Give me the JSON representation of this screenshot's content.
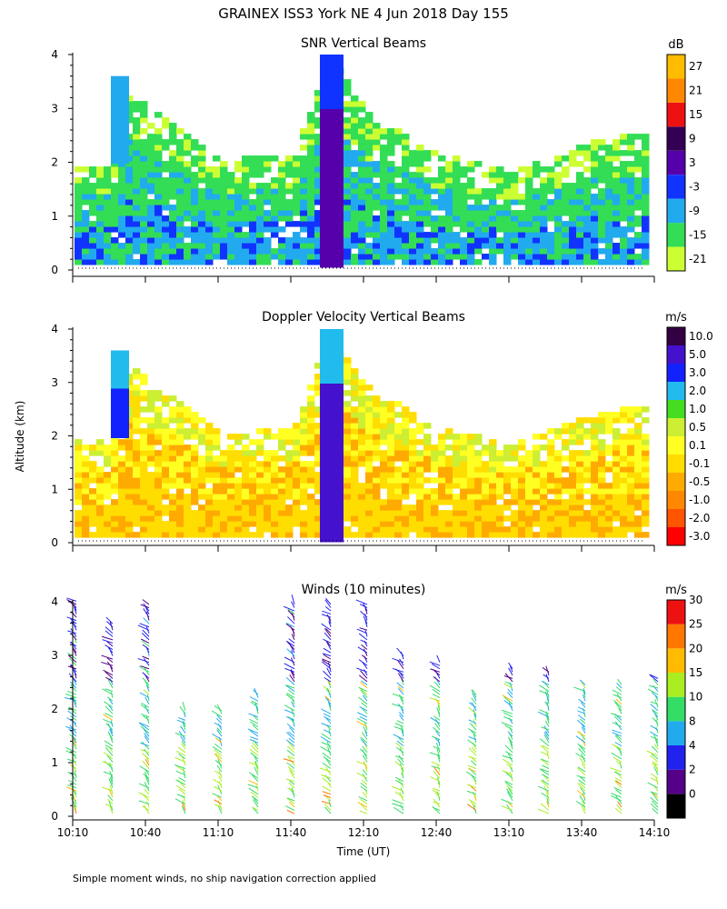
{
  "figure": {
    "title": "GRAINEX ISS3 York NE   4 Jun 2018 Day 155",
    "y_axis_label": "Altitude (km)",
    "x_axis_label": "Time (UT)",
    "footnote": "Simple moment winds, no ship navigation correction applied"
  },
  "time_ticks": [
    "10:10",
    "10:40",
    "11:10",
    "11:40",
    "12:10",
    "12:40",
    "13:10",
    "13:40",
    "14:10"
  ],
  "altitude_ticks": [
    "0",
    "1",
    "2",
    "3",
    "4"
  ],
  "panels": [
    {
      "key": "snr",
      "title": "SNR Vertical Beams",
      "unit": "dB",
      "colorbar": [
        {
          "label": "-21",
          "color": "#ccff33"
        },
        {
          "label": "-15",
          "color": "#33dd55"
        },
        {
          "label": "-9",
          "color": "#22aaee"
        },
        {
          "label": "-3",
          "color": "#1133ff"
        },
        {
          "label": "3",
          "color": "#5500aa"
        },
        {
          "label": "9",
          "color": "#330055"
        },
        {
          "label": "15",
          "color": "#ee1111"
        },
        {
          "label": "21",
          "color": "#ff8800"
        },
        {
          "label": "27",
          "color": "#ffbb00"
        }
      ]
    },
    {
      "key": "doppler",
      "title": "Doppler Velocity Vertical Beams",
      "unit": "m/s",
      "colorbar": [
        {
          "label": "-3.0",
          "color": "#ff0000"
        },
        {
          "label": "-2.0",
          "color": "#ff5500"
        },
        {
          "label": "-1.0",
          "color": "#ff8800"
        },
        {
          "label": "-0.5",
          "color": "#ffaa00"
        },
        {
          "label": "-0.1",
          "color": "#ffdd00"
        },
        {
          "label": "0.1",
          "color": "#ffff22"
        },
        {
          "label": "0.5",
          "color": "#ccee33"
        },
        {
          "label": "1.0",
          "color": "#44dd22"
        },
        {
          "label": "2.0",
          "color": "#22bbee"
        },
        {
          "label": "3.0",
          "color": "#1122ff"
        },
        {
          "label": "5.0",
          "color": "#4411cc"
        },
        {
          "label": "10.0",
          "color": "#330044"
        }
      ]
    },
    {
      "key": "winds",
      "title": "Winds (10 minutes)",
      "unit": "m/s",
      "colorbar": [
        {
          "label": "0",
          "color": "#000000"
        },
        {
          "label": "2",
          "color": "#550088"
        },
        {
          "label": "4",
          "color": "#2222ee"
        },
        {
          "label": "8",
          "color": "#22aaee"
        },
        {
          "label": "10",
          "color": "#33dd66"
        },
        {
          "label": "15",
          "color": "#aaee22"
        },
        {
          "label": "20",
          "color": "#ffbb00"
        },
        {
          "label": "25",
          "color": "#ff7700"
        },
        {
          "label": "30",
          "color": "#ee1111"
        }
      ]
    }
  ],
  "chart_data": [
    {
      "type": "heatmap",
      "title": "SNR Vertical Beams",
      "xlabel": "Time (UT)",
      "ylabel": "Altitude (km)",
      "xlim": [
        "10:10",
        "14:10"
      ],
      "ylim": [
        0,
        4
      ],
      "colorbar_unit": "dB",
      "notes_echo_top_km": [
        {
          "time": "10:10",
          "top_km": 2.0
        },
        {
          "time": "10:25",
          "top_km": 2.0
        },
        {
          "time": "10:30",
          "top_km": 3.5
        },
        {
          "time": "11:10",
          "top_km": 2.1
        },
        {
          "time": "11:40",
          "top_km": 2.2
        },
        {
          "time": "11:55",
          "top_km": 4.0
        },
        {
          "time": "12:10",
          "top_km": 3.0
        },
        {
          "time": "12:40",
          "top_km": 2.2
        },
        {
          "time": "13:10",
          "top_km": 1.9
        },
        {
          "time": "13:40",
          "top_km": 2.4
        },
        {
          "time": "14:00",
          "top_km": 2.6
        }
      ]
    },
    {
      "type": "heatmap",
      "title": "Doppler Velocity Vertical Beams",
      "xlabel": "Time (UT)",
      "ylabel": "Altitude (km)",
      "xlim": [
        "10:10",
        "14:10"
      ],
      "ylim": [
        0,
        4
      ],
      "colorbar_unit": "m/s"
    },
    {
      "type": "scatter",
      "title": "Winds (10 minutes)",
      "xlabel": "Time (UT)",
      "ylabel": "Altitude (km)",
      "xlim": [
        "10:10",
        "14:10"
      ],
      "ylim": [
        0,
        4
      ],
      "colorbar_unit": "m/s",
      "profiles": [
        {
          "time": "10:10",
          "top_km": 4.1
        },
        {
          "time": "10:25",
          "top_km": 3.6
        },
        {
          "time": "10:40",
          "top_km": 4.0
        },
        {
          "time": "10:55",
          "top_km": 2.0
        },
        {
          "time": "11:10",
          "top_km": 2.0
        },
        {
          "time": "11:25",
          "top_km": 2.3
        },
        {
          "time": "11:40",
          "top_km": 4.0
        },
        {
          "time": "11:55",
          "top_km": 4.0
        },
        {
          "time": "12:10",
          "top_km": 4.0
        },
        {
          "time": "12:25",
          "top_km": 3.0
        },
        {
          "time": "12:40",
          "top_km": 2.9
        },
        {
          "time": "12:55",
          "top_km": 2.3
        },
        {
          "time": "13:10",
          "top_km": 2.8
        },
        {
          "time": "13:25",
          "top_km": 2.7
        },
        {
          "time": "13:40",
          "top_km": 2.5
        },
        {
          "time": "13:55",
          "top_km": 2.5
        },
        {
          "time": "14:10",
          "top_km": 2.6
        }
      ]
    }
  ]
}
